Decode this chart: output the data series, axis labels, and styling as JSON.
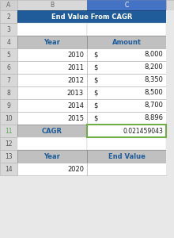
{
  "title": "End Value From CAGR",
  "title_bg": "#1F5C99",
  "title_fg": "#FFFFFF",
  "col_header_bg": "#C0C0C0",
  "col_header_fg": "#1F5C99",
  "cagr_row_bg": "#C0C0C0",
  "cagr_cell_bg": "#FFFFFF",
  "green_border": "#70AD47",
  "table1_headers": [
    "Year",
    "Amount"
  ],
  "table1_years": [
    "2010",
    "2011",
    "2012",
    "2013",
    "2014",
    "2015"
  ],
  "table1_amounts": [
    "8,000",
    "8,200",
    "8,350",
    "8,500",
    "8,700",
    "8,896"
  ],
  "cagr_label": "CAGR",
  "cagr_value": "0.021459043",
  "table2_headers": [
    "Year",
    "End Value"
  ],
  "table2_year": "2020",
  "bg_color": "#E8E8E8",
  "corner_bg": "#D0D0D0",
  "row_header_bg": "#D8D8D8",
  "col_header_top_bg": "#D8D8D8",
  "col_C_selected_bg": "#4472C4",
  "row11_num_color": "#5BA85A",
  "white": "#FFFFFF",
  "cell_border": "#B0B0B0",
  "dark_border": "#808080",
  "text_dark": "#1A1A1A"
}
